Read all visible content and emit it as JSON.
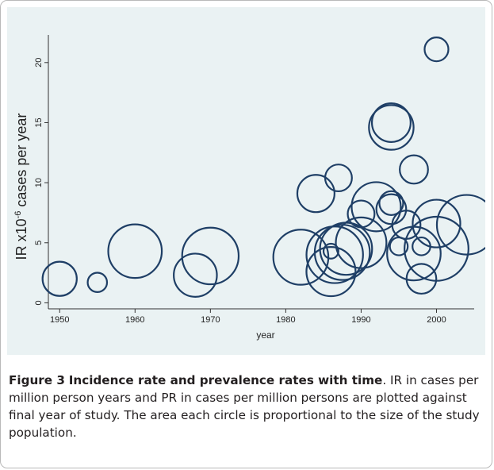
{
  "caption": {
    "label": "Figure 3",
    "title": "Incidence rate and prevalence rates with time",
    "body": ". IR in cases per million person years and PR in cases per million persons are plotted against final year of study. The area each circle is proportional to the size of the study population."
  },
  "colors": {
    "panel_background": "#eaf2f3",
    "marker_stroke": "#1f3f66",
    "axis": "#333333"
  },
  "chart_data": {
    "type": "scatter",
    "title": "",
    "xlabel": "year",
    "ylabel_base": "IR x10",
    "ylabel_exponent": "-6",
    "ylabel_rest": " cases per year",
    "xlim": [
      1948.5,
      2005
    ],
    "ylim": [
      -0.5,
      22.3
    ],
    "xticks": [
      1950,
      1960,
      1970,
      1980,
      1990,
      2000
    ],
    "yticks": [
      0,
      5,
      10,
      15,
      20
    ],
    "grid": false,
    "points": [
      {
        "x": 1950,
        "y": 2.0,
        "r": 2.3
      },
      {
        "x": 1955,
        "y": 1.7,
        "r": 1.3
      },
      {
        "x": 1960,
        "y": 4.3,
        "r": 3.6
      },
      {
        "x": 1968,
        "y": 2.3,
        "r": 2.9
      },
      {
        "x": 1970,
        "y": 3.9,
        "r": 3.8
      },
      {
        "x": 1982,
        "y": 3.8,
        "r": 3.7
      },
      {
        "x": 1984,
        "y": 9.1,
        "r": 2.5
      },
      {
        "x": 1986,
        "y": 2.6,
        "r": 3.3
      },
      {
        "x": 1986,
        "y": 4.3,
        "r": 1.0
      },
      {
        "x": 1986.5,
        "y": 4.0,
        "r": 3.8
      },
      {
        "x": 1987,
        "y": 10.4,
        "r": 1.8
      },
      {
        "x": 1987.5,
        "y": 4.2,
        "r": 3.7
      },
      {
        "x": 1988,
        "y": 4.5,
        "r": 3.5
      },
      {
        "x": 1990,
        "y": 7.4,
        "r": 1.8
      },
      {
        "x": 1990,
        "y": 5.0,
        "r": 3.4
      },
      {
        "x": 1992,
        "y": 8.0,
        "r": 3.3
      },
      {
        "x": 1994,
        "y": 14.6,
        "r": 3.0
      },
      {
        "x": 1994,
        "y": 15.0,
        "r": 2.6
      },
      {
        "x": 1994,
        "y": 8.3,
        "r": 1.6
      },
      {
        "x": 1994,
        "y": 7.8,
        "r": 2.0
      },
      {
        "x": 1995,
        "y": 4.7,
        "r": 1.2
      },
      {
        "x": 1996,
        "y": 6.5,
        "r": 1.9
      },
      {
        "x": 1997,
        "y": 11.1,
        "r": 1.9
      },
      {
        "x": 1997,
        "y": 4.1,
        "r": 3.6
      },
      {
        "x": 1998,
        "y": 4.7,
        "r": 1.2
      },
      {
        "x": 1998,
        "y": 2.0,
        "r": 2.0
      },
      {
        "x": 2000,
        "y": 21.1,
        "r": 1.6
      },
      {
        "x": 2000,
        "y": 6.6,
        "r": 3.2
      },
      {
        "x": 2000,
        "y": 4.5,
        "r": 4.3
      },
      {
        "x": 2004,
        "y": 6.5,
        "r": 4.0
      }
    ]
  }
}
